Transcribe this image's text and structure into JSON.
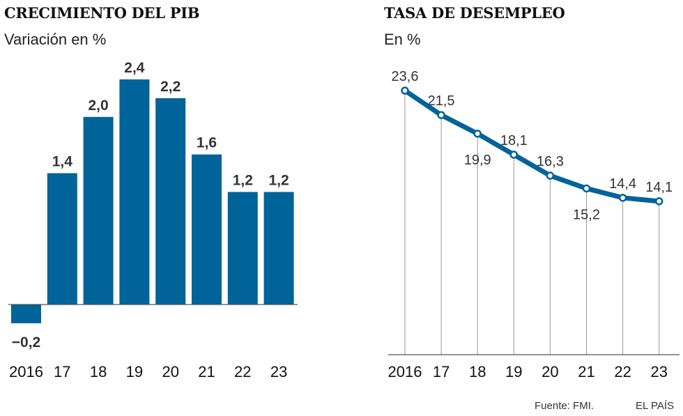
{
  "chart_data": [
    {
      "type": "bar",
      "title": "CRECIMIENTO DEL PIB",
      "subtitle": "Variación en %",
      "categories": [
        "2016",
        "17",
        "18",
        "19",
        "20",
        "21",
        "22",
        "23"
      ],
      "values": [
        -0.2,
        1.4,
        2.0,
        2.4,
        2.2,
        1.6,
        1.2,
        1.2
      ],
      "value_labels": [
        "−0,2",
        "1,4",
        "2,0",
        "2,4",
        "2,2",
        "1,6",
        "1,2",
        "1,2"
      ],
      "color": "#00639a",
      "ylim": [
        -0.2,
        2.4
      ],
      "grid": false
    },
    {
      "type": "line",
      "title": "TASA DE DESEMPLEO",
      "subtitle": "En %",
      "categories": [
        "2016",
        "17",
        "18",
        "19",
        "20",
        "21",
        "22",
        "23"
      ],
      "values": [
        23.6,
        21.5,
        19.9,
        18.1,
        16.3,
        15.2,
        14.4,
        14.1
      ],
      "value_labels": [
        "23,6",
        "21,5",
        "19,9",
        "18,1",
        "16,3",
        "15,2",
        "14,4",
        "14,1"
      ],
      "label_positions": [
        "above",
        "above",
        "below",
        "above",
        "above",
        "below",
        "above",
        "above"
      ],
      "color": "#00639a",
      "ylim": [
        0,
        23.6
      ],
      "grid": false
    }
  ],
  "footer": {
    "source": "Fuente: FMI.",
    "brand": "EL PAÍS"
  }
}
